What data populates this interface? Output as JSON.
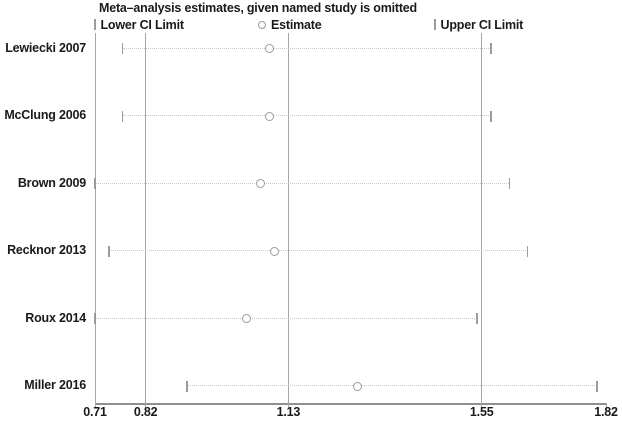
{
  "chart": {
    "title": "Meta–analysis estimates, given named study is omitted",
    "legend": [
      {
        "marker": "tick-icon",
        "label": "Lower CI Limit"
      },
      {
        "marker": "circle-icon",
        "label": "Estimate"
      },
      {
        "marker": "tick-icon",
        "label": "Upper CI Limit"
      }
    ]
  },
  "chart_data": {
    "type": "scatter",
    "subtype": "leave-one-out-sensitivity-forest",
    "title": "Meta–analysis estimates, given named study is omitted",
    "categories": [
      "Lewiecki 2007",
      "McClung 2006",
      "Brown 2009",
      "Recknor 2013",
      "Roux 2014",
      "Miller 2016"
    ],
    "series": [
      {
        "name": "Lower CI Limit",
        "values": [
          0.77,
          0.77,
          0.71,
          0.74,
          0.71,
          0.91
        ]
      },
      {
        "name": "Estimate",
        "values": [
          1.09,
          1.09,
          1.07,
          1.1,
          1.04,
          1.28
        ]
      },
      {
        "name": "Upper CI Limit",
        "values": [
          1.57,
          1.57,
          1.61,
          1.65,
          1.54,
          1.8
        ]
      }
    ],
    "xlim": [
      0.71,
      1.82
    ],
    "x_ticks": [
      0.71,
      0.82,
      1.13,
      1.55,
      1.82
    ],
    "x_tick_labels": [
      "0.71",
      "0.82",
      "1.13",
      "1.55",
      "1.82"
    ],
    "gridlines_x": [
      0.71,
      0.82,
      1.13,
      1.55
    ],
    "legend_position": "top",
    "grid": "vertical solid gridlines, horizontal dotted CI rows",
    "xlabel": "",
    "ylabel": ""
  },
  "colors": {
    "background": "#ffffff",
    "text": "#1a1a1a",
    "gridline": "#a6a6a6",
    "axis": "#8f8f8f",
    "ci_dotted_line": "#c8c8c8",
    "marker": "#9b9b9b"
  }
}
